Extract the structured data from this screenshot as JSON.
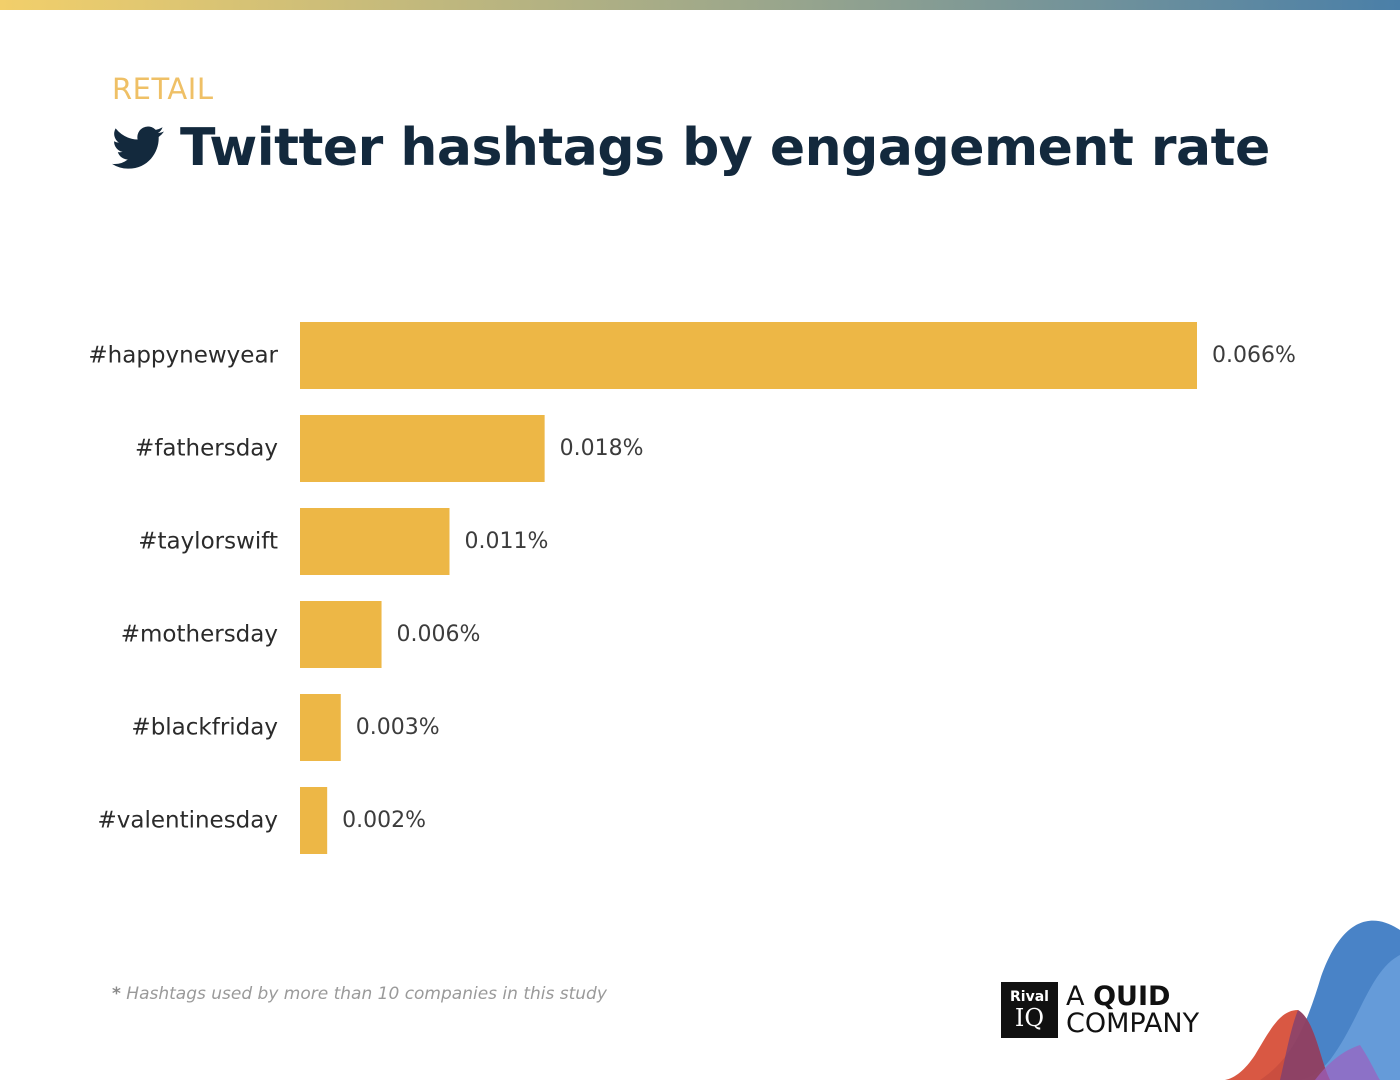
{
  "header": {
    "category": "RETAIL",
    "title": "Twitter hashtags by engagement rate",
    "icon": "twitter-bird-icon"
  },
  "colors": {
    "bar": "#edb746",
    "title": "#13293d",
    "category": "#efc066",
    "label": "#2b2b2b",
    "value": "#3c3c3c"
  },
  "chart_data": {
    "type": "bar",
    "orientation": "horizontal",
    "categories": [
      "#happynewyear",
      "#fathersday",
      "#taylorswift",
      "#mothersday",
      "#blackfriday",
      "#valentinesday"
    ],
    "values": [
      0.066,
      0.018,
      0.011,
      0.006,
      0.003,
      0.002
    ],
    "value_labels": [
      "0.066%",
      "0.018%",
      "0.011%",
      "0.006%",
      "0.003%",
      "0.002%"
    ],
    "unit": "%",
    "title": "Twitter hashtags by engagement rate",
    "xlabel": "",
    "ylabel": "",
    "xlim": [
      0,
      0.066
    ],
    "grid": false,
    "legend": "none"
  },
  "footnote": {
    "star": "*",
    "text": "Hashtags used by more than 10 companies in this study"
  },
  "logo": {
    "box_line1": "Rival",
    "box_line2": "IQ",
    "text_a": "A",
    "text_quid": "QUID",
    "text_company": "COMPANY"
  }
}
